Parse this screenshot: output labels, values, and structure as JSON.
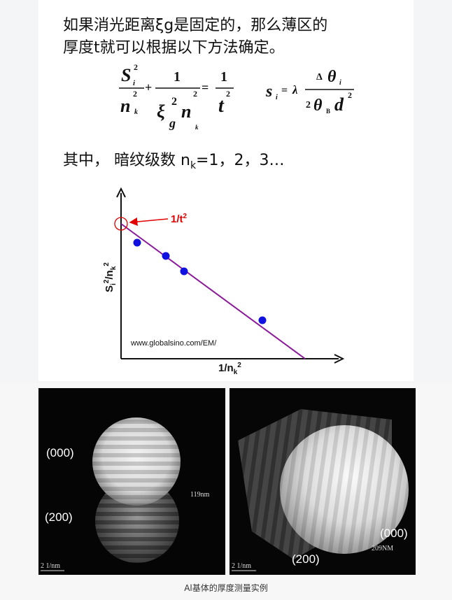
{
  "paragraph": {
    "lines": [
      "如果消光距离ξg是固定的，那么薄区的",
      "厚度t就可以根据以下方法确定。"
    ]
  },
  "formula_1": {
    "parts": [
      "S",
      "i",
      "2",
      "n",
      "k",
      "2",
      "+",
      "1",
      "ξ",
      "g",
      "2",
      "n",
      "k",
      "2",
      "=",
      "1",
      "t",
      "2"
    ]
  },
  "formula_2": {
    "parts": [
      "s",
      "i",
      "=",
      "λ",
      "Δ",
      "θ",
      "i",
      "2",
      "θ",
      "B",
      "d",
      "2"
    ]
  },
  "condition": {
    "text": "其中， 暗纹级数 n",
    "subscript": "k",
    "suffix": "=1，2，3…"
  },
  "plot": {
    "intercept_label": {
      "base": "1/t",
      "sup": "2"
    },
    "y_label": [
      "S",
      "i",
      "2",
      "/n",
      "k",
      "2"
    ],
    "x_label": [
      "1/n",
      "k",
      "2"
    ],
    "source": "www.globalsino.com/EM/"
  },
  "figures": [
    {
      "labels": [
        "(000)",
        "(200)"
      ],
      "measurement": "119nm",
      "scale": "2 1/nm"
    },
    {
      "labels": [
        "(000)",
        "(200)"
      ],
      "measurement": "209NM",
      "scale": "2 1/nm"
    }
  ],
  "caption": "Al基体的厚度测量实例"
}
